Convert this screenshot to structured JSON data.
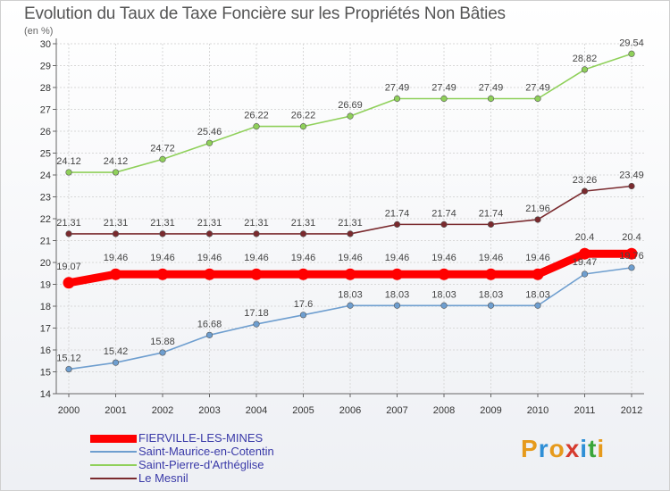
{
  "header": {
    "title": "Evolution du Taux de Taxe Foncière sur les Propriétés Non Bâties",
    "unit": "(en %)"
  },
  "logo": {
    "text": "Proxiti",
    "colors": [
      "#e69a1c",
      "#2f8fd6",
      "#e69a1c",
      "#d63b2f",
      "#2f8fd6",
      "#3aa63a",
      "#e69a1c"
    ]
  },
  "chart_data": {
    "type": "line",
    "title": "Evolution du Taux de Taxe Foncière sur les Propriétés Non Bâties",
    "ylabel": "(en %)",
    "xlabel": "",
    "x": [
      2000,
      2001,
      2002,
      2003,
      2004,
      2005,
      2006,
      2007,
      2008,
      2009,
      2010,
      2011,
      2012
    ],
    "ylim": [
      14,
      30
    ],
    "yticks": [
      14,
      15,
      16,
      17,
      18,
      19,
      20,
      21,
      22,
      23,
      24,
      25,
      26,
      27,
      28,
      29,
      30
    ],
    "grid": true,
    "legend": "bottom-left",
    "series": [
      {
        "name": "FIERVILLE-LES-MINES",
        "color": "#ff0000",
        "values": [
          19.07,
          19.46,
          19.46,
          19.46,
          19.46,
          19.46,
          19.46,
          19.46,
          19.46,
          19.46,
          19.46,
          20.4,
          20.4
        ],
        "labels": [
          "19.07",
          "19.46",
          "19.46",
          "19.46",
          "19.46",
          "19.46",
          "19.46",
          "19.46",
          "19.46",
          "19.46",
          "19.46",
          "20.4",
          "20.4"
        ]
      },
      {
        "name": "Saint-Maurice-en-Cotentin",
        "color": "#6e9ecf",
        "values": [
          15.12,
          15.42,
          15.88,
          16.68,
          17.18,
          17.6,
          18.03,
          18.03,
          18.03,
          18.03,
          18.03,
          19.47,
          19.76
        ],
        "labels": [
          "15.12",
          "15.42",
          "15.88",
          "16.68",
          "17.18",
          "17.6",
          "18.03",
          "18.03",
          "18.03",
          "18.03",
          "18.03",
          "19.47",
          "19.76"
        ]
      },
      {
        "name": "Saint-Pierre-d'Arthéglise",
        "color": "#8fd05a",
        "values": [
          24.12,
          24.12,
          24.72,
          25.46,
          26.22,
          26.22,
          26.69,
          27.49,
          27.49,
          27.49,
          27.49,
          28.82,
          29.54
        ],
        "labels": [
          "24.12",
          "24.12",
          "24.72",
          "25.46",
          "26.22",
          "26.22",
          "26.69",
          "27.49",
          "27.49",
          "27.49",
          "27.49",
          "28.82",
          "29.54"
        ]
      },
      {
        "name": "Le Mesnil",
        "color": "#7a2a2e",
        "values": [
          21.31,
          21.31,
          21.31,
          21.31,
          21.31,
          21.31,
          21.31,
          21.74,
          21.74,
          21.74,
          21.96,
          23.26,
          23.49
        ],
        "labels": [
          "21.31",
          "21.31",
          "21.31",
          "21.31",
          "21.31",
          "21.31",
          "21.31",
          "21.74",
          "21.74",
          "21.74",
          "21.96",
          "23.26",
          "23.49"
        ]
      }
    ]
  }
}
